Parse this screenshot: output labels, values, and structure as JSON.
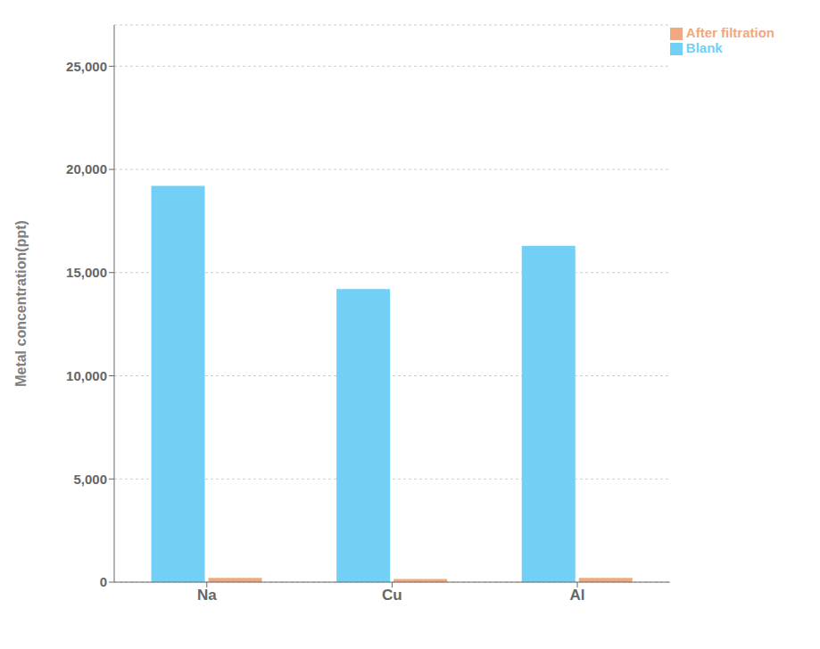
{
  "chart_data": {
    "type": "bar",
    "categories": [
      "Na",
      "Cu",
      "Al"
    ],
    "series": [
      {
        "name": "Blank",
        "color": "#72CFF5",
        "values": [
          19200,
          14200,
          16300
        ]
      },
      {
        "name": "After filtration",
        "color": "#F0A880",
        "values": [
          200,
          150,
          200
        ]
      }
    ],
    "ylabel": "Metal concentration(ppt)",
    "ylim": [
      0,
      27000
    ],
    "yticks": [
      0,
      {
        "value": 5000,
        "label": "5,000"
      },
      {
        "value": 10000,
        "label": "10,000"
      },
      {
        "value": 15000,
        "label": "15,000"
      },
      {
        "value": 20000,
        "label": "20,000"
      },
      {
        "value": 25000,
        "label": "25,000"
      }
    ],
    "grid": true,
    "legend": "upper right"
  }
}
